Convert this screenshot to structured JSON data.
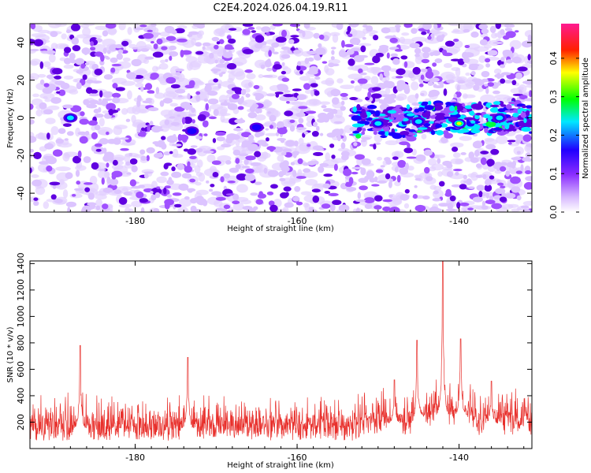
{
  "title": "C2E4.2024.026.04.19.R11",
  "colors": {
    "snr_line": "#e8302c",
    "colormap": [
      "#ffffff",
      "#d7b8ff",
      "#a04cff",
      "#5a00e0",
      "#0000ff",
      "#00ffff",
      "#00ff00",
      "#ffff00",
      "#ff0000",
      "#ff00a0"
    ]
  },
  "chart_data": [
    {
      "type": "heatmap",
      "xlabel": "Height of straight line (km)",
      "ylabel": "Frequency (Hz)",
      "xlim": [
        -193,
        -131
      ],
      "ylim": [
        -50,
        50
      ],
      "xticks": [
        -180,
        -160,
        -140
      ],
      "xtick_labels": [
        "-180",
        "-160",
        "-140"
      ],
      "yticks": [
        -40,
        -20,
        0,
        20,
        40
      ],
      "ytick_labels": [
        "-40",
        "-20",
        "0",
        "20",
        "40"
      ],
      "colorbar": {
        "label": "Normalized spectral amplitude",
        "range": [
          0,
          0.49
        ],
        "ticks": [
          0.0,
          0.1,
          0.2,
          0.3,
          0.4
        ],
        "tick_labels": [
          "0.0",
          "0.1",
          "0.2",
          "0.3",
          "0.4"
        ]
      },
      "features": [
        {
          "x": -188,
          "freq": 0,
          "amplitude": 0.3
        },
        {
          "x": -173,
          "freq": -7,
          "amplitude": 0.22
        },
        {
          "x": -165,
          "freq": -5,
          "amplitude": 0.2
        },
        {
          "x": -150,
          "freq": -3,
          "amplitude": 0.28
        },
        {
          "x": -145,
          "freq": -2,
          "amplitude": 0.3
        },
        {
          "x": -140,
          "freq": -3,
          "amplitude": 0.45
        },
        {
          "x": -135,
          "freq": 0,
          "amplitude": 0.3
        }
      ],
      "signal_band": {
        "x_start": -153,
        "x_end": -131,
        "freq_start": -8,
        "freq_end": 8
      }
    },
    {
      "type": "line",
      "xlabel": "Height of straight line (km)",
      "ylabel": "SNR (10 * v/v)",
      "xlim": [
        -193,
        -131
      ],
      "ylim": [
        0,
        1420
      ],
      "xticks": [
        -180,
        -160,
        -140
      ],
      "xtick_labels": [
        "-180",
        "-160",
        "-140"
      ],
      "yticks": [
        200,
        400,
        600,
        800,
        1000,
        1200,
        1400
      ],
      "ytick_labels": [
        "200",
        "400",
        "600",
        "800",
        "1000",
        "1200",
        "1400"
      ],
      "baseline": 150,
      "peaks": [
        {
          "x": -186.8,
          "y": 780
        },
        {
          "x": -173.5,
          "y": 690
        },
        {
          "x": -148.0,
          "y": 520
        },
        {
          "x": -145.2,
          "y": 820
        },
        {
          "x": -142.0,
          "y": 1420
        },
        {
          "x": -139.8,
          "y": 830
        },
        {
          "x": -136.0,
          "y": 510
        }
      ]
    }
  ]
}
